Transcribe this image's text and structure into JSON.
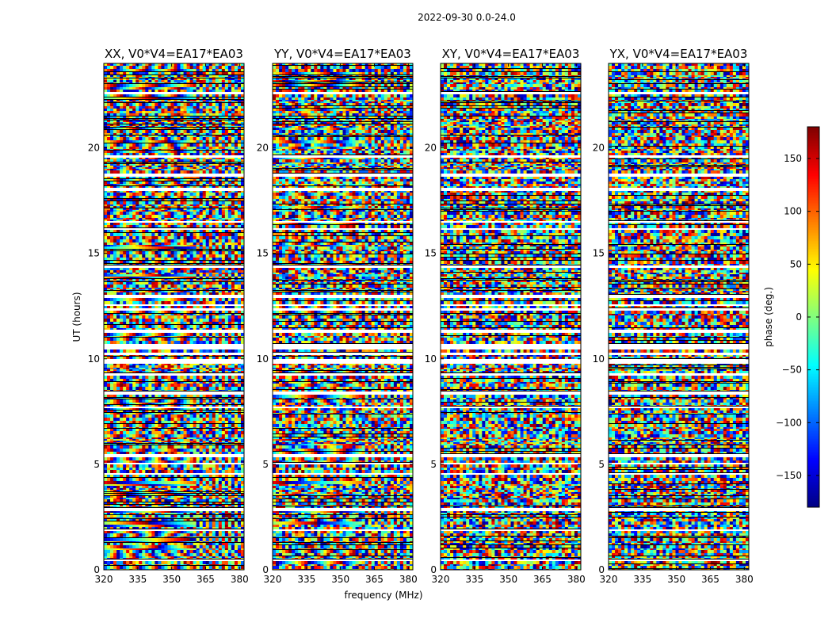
{
  "figure_title": "2022-09-30 0.0-24.0",
  "chart_data": {
    "type": "heatmap",
    "title": "2022-09-30 0.0-24.0",
    "xlabel": "frequency (MHz)",
    "ylabel": "UT (hours)",
    "xlim": [
      320,
      382
    ],
    "ylim": [
      0,
      24
    ],
    "xticks": [
      320,
      335,
      350,
      365,
      380
    ],
    "yticks": [
      0,
      5,
      10,
      15,
      20
    ],
    "colorbar": {
      "label": "phase (deg.)",
      "range": [
        -180,
        180
      ],
      "ticks": [
        150,
        100,
        50,
        0,
        -50,
        -100,
        -150
      ],
      "tick_labels": [
        "150",
        "100",
        "50",
        "0",
        "−50",
        "−100",
        "−150"
      ],
      "colormap": "jet"
    },
    "panels": [
      {
        "title": "XX, V0*V4=EA17*EA03",
        "pol": "XX"
      },
      {
        "title": "YY, V0*V4=EA17*EA03",
        "pol": "YY"
      },
      {
        "title": "XY, V0*V4=EA17*EA03",
        "pol": "XY"
      },
      {
        "title": "YX, V0*V4=EA17*EA03",
        "pol": "YX"
      }
    ],
    "xtick_labels": [
      "320",
      "335",
      "350",
      "365",
      "380"
    ],
    "ytick_labels": [
      "0",
      "5",
      "10",
      "15",
      "20"
    ]
  }
}
